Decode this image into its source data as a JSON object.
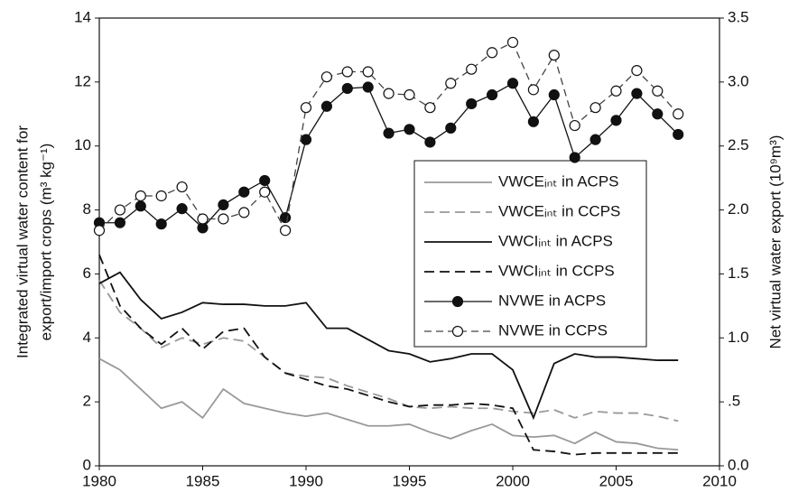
{
  "chart_data": {
    "type": "line",
    "x": [
      1980,
      1981,
      1982,
      1983,
      1984,
      1985,
      1986,
      1987,
      1988,
      1989,
      1990,
      1991,
      1992,
      1993,
      1994,
      1995,
      1996,
      1997,
      1998,
      1999,
      2000,
      2001,
      2002,
      2003,
      2004,
      2005,
      2006,
      2007,
      2008
    ],
    "xlim": [
      1980,
      2010
    ],
    "xticks": [
      1980,
      1985,
      1990,
      1995,
      2000,
      2005,
      2010
    ],
    "ylim": [
      0,
      14
    ],
    "yticks": [
      0,
      2,
      4,
      6,
      8,
      10,
      12,
      14
    ],
    "y2lim": [
      0,
      3.5
    ],
    "y2ticks": [
      {
        "value": 0,
        "label": "0.0"
      },
      {
        "value": 0.5,
        "label": ".5"
      },
      {
        "value": 1,
        "label": "1.0"
      },
      {
        "value": 1.5,
        "label": "1.5"
      },
      {
        "value": 2,
        "label": "2.0"
      },
      {
        "value": 2.5,
        "label": "2.5"
      },
      {
        "value": 3,
        "label": "3.0"
      },
      {
        "value": 3.5,
        "label": "3.5"
      }
    ],
    "ylabel": [
      "Integrated virtual water content for",
      "export/import crops (m³ kg⁻¹)"
    ],
    "y2label": "Net virtual water export (10⁹m³)",
    "grid": false,
    "series": [
      {
        "name": "VWCEᵢₙₜ in ACPS",
        "color": "#999999",
        "dashed": false,
        "values": [
          3.35,
          3.0,
          2.4,
          1.8,
          2.0,
          1.5,
          2.4,
          1.95,
          1.8,
          1.65,
          1.55,
          1.65,
          1.45,
          1.25,
          1.25,
          1.3,
          1.05,
          0.85,
          1.1,
          1.3,
          0.95,
          0.9,
          0.95,
          0.7,
          1.05,
          0.75,
          0.7,
          0.55,
          0.5
        ]
      },
      {
        "name": "VWCEᵢₙₜ in CCPS",
        "color": "#999999",
        "dashed": true,
        "values": [
          5.8,
          4.8,
          4.3,
          3.7,
          4.0,
          3.8,
          4.0,
          3.9,
          3.4,
          2.9,
          2.8,
          2.75,
          2.5,
          2.3,
          2.1,
          1.85,
          1.8,
          1.85,
          1.8,
          1.8,
          1.7,
          1.65,
          1.75,
          1.5,
          1.7,
          1.65,
          1.65,
          1.55,
          1.4
        ]
      },
      {
        "name": "VWCIᵢₙₜ in ACPS",
        "color": "#111111",
        "dashed": false,
        "values": [
          5.7,
          6.05,
          5.2,
          4.6,
          4.8,
          5.1,
          5.05,
          5.05,
          5.0,
          5.0,
          5.1,
          4.3,
          4.3,
          3.95,
          3.6,
          3.5,
          3.25,
          3.35,
          3.5,
          3.5,
          3.0,
          1.5,
          3.2,
          3.5,
          3.4,
          3.4,
          3.35,
          3.3,
          3.3
        ]
      },
      {
        "name": "VWCIᵢₙₜ in CCPS",
        "color": "#111111",
        "dashed": true,
        "values": [
          6.6,
          5.0,
          4.3,
          3.8,
          4.3,
          3.65,
          4.2,
          4.3,
          3.4,
          2.9,
          2.7,
          2.5,
          2.4,
          2.2,
          2.0,
          1.85,
          1.9,
          1.9,
          1.95,
          1.9,
          1.8,
          0.5,
          0.45,
          0.35,
          0.4,
          0.4,
          0.4,
          0.4,
          0.4
        ]
      },
      {
        "name": "NVWE in ACPS",
        "color": "#111111",
        "dashed": false,
        "marker": "filled",
        "axis": "y2",
        "values": [
          1.9,
          1.9,
          2.03,
          1.89,
          2.01,
          1.86,
          2.04,
          2.14,
          2.23,
          1.94,
          2.55,
          2.81,
          2.95,
          2.96,
          2.6,
          2.63,
          2.53,
          2.64,
          2.83,
          2.9,
          2.99,
          2.69,
          2.9,
          2.41,
          2.55,
          2.7,
          2.91,
          2.75,
          2.59
        ]
      },
      {
        "name": "NVWE in CCPS",
        "color": "#444444",
        "dashed": true,
        "marker": "open",
        "axis": "y2",
        "values": [
          1.84,
          2.0,
          2.11,
          2.11,
          2.18,
          1.93,
          1.93,
          1.98,
          2.14,
          1.84,
          2.8,
          3.04,
          3.08,
          3.08,
          2.91,
          2.9,
          2.8,
          2.99,
          3.1,
          3.23,
          3.31,
          2.94,
          3.21,
          2.66,
          2.8,
          2.93,
          3.09,
          2.93,
          2.75
        ]
      }
    ]
  }
}
